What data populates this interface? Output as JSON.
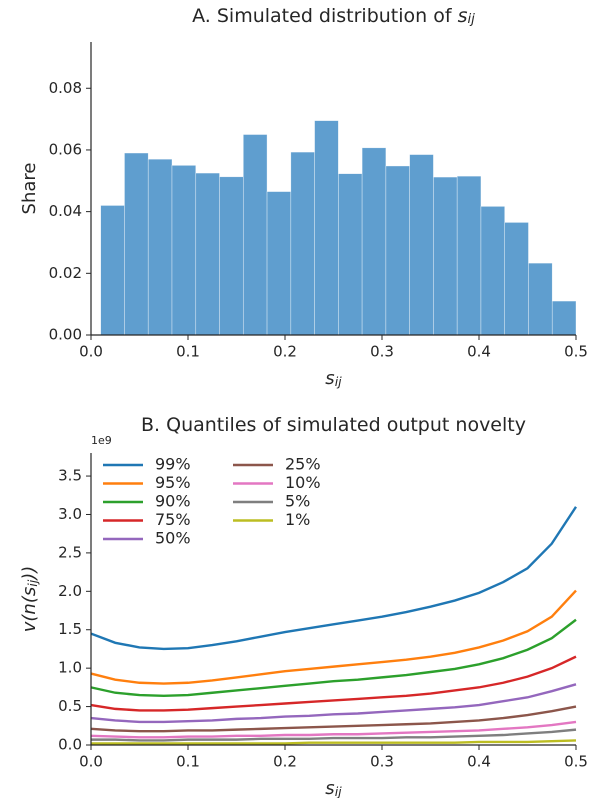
{
  "chart_data": [
    {
      "type": "histogram",
      "title": [
        {
          "text": "A. Simulated distribution of",
          "style": "normal"
        },
        {
          "text": "s",
          "style": "italic"
        },
        {
          "text": "ij",
          "style": "sub"
        }
      ],
      "xlabel": [
        {
          "text": "s",
          "style": "italic"
        },
        {
          "text": "ij",
          "style": "sub"
        }
      ],
      "ylabel": [
        {
          "text": "Share",
          "style": "normal"
        }
      ],
      "bins": [
        0.01,
        0.0345,
        0.059,
        0.0835,
        0.108,
        0.1325,
        0.157,
        0.1815,
        0.206,
        0.2305,
        0.255,
        0.2795,
        0.304,
        0.3285,
        0.353,
        0.3775,
        0.402,
        0.4265,
        0.451,
        0.4755,
        0.5
      ],
      "values": [
        0.042,
        0.059,
        0.057,
        0.055,
        0.0525,
        0.0513,
        0.065,
        0.0465,
        0.0593,
        0.0695,
        0.0523,
        0.0607,
        0.0548,
        0.0585,
        0.0512,
        0.0515,
        0.0417,
        0.0365,
        0.0233,
        0.011
      ],
      "color": "#5f9ecf",
      "xlim": [
        0,
        0.5
      ],
      "xticks": [
        {
          "value": 0,
          "label": "0.0"
        },
        {
          "value": 0.1,
          "label": "0.1"
        },
        {
          "value": 0.2,
          "label": "0.2"
        },
        {
          "value": 0.3,
          "label": "0.3"
        },
        {
          "value": 0.4,
          "label": "0.4"
        },
        {
          "value": 0.5,
          "label": "0.5"
        }
      ],
      "ylim": [
        0,
        0.095
      ],
      "yticks": [
        {
          "value": 0,
          "label": "0.00"
        },
        {
          "value": 0.02,
          "label": "0.02"
        },
        {
          "value": 0.04,
          "label": "0.04"
        },
        {
          "value": 0.06,
          "label": "0.06"
        },
        {
          "value": 0.08,
          "label": "0.08"
        }
      ]
    },
    {
      "type": "line",
      "title": [
        {
          "text": "B. Quantiles of simulated output novelty",
          "style": "normal"
        }
      ],
      "xlabel": [
        {
          "text": "s",
          "style": "italic"
        },
        {
          "text": "ij",
          "style": "sub"
        }
      ],
      "ylabel": [
        {
          "text": "v(n(",
          "style": "italic"
        },
        {
          "text": "s",
          "style": "italic"
        },
        {
          "text": "ij",
          "style": "sub"
        },
        {
          "text": "))",
          "style": "italic"
        }
      ],
      "y_offset_label": "1e9",
      "legend": "upper left",
      "legend_rows": 5,
      "x": [
        0,
        0.025,
        0.05,
        0.075,
        0.1,
        0.125,
        0.15,
        0.175,
        0.2,
        0.225,
        0.25,
        0.275,
        0.3,
        0.325,
        0.35,
        0.375,
        0.4,
        0.425,
        0.45,
        0.475,
        0.5
      ],
      "series": [
        {
          "name": "99%",
          "color": "#1f77b4",
          "values": [
            1.45,
            1.33,
            1.27,
            1.25,
            1.26,
            1.3,
            1.35,
            1.41,
            1.47,
            1.52,
            1.57,
            1.62,
            1.67,
            1.73,
            1.8,
            1.88,
            1.98,
            2.12,
            2.3,
            2.62,
            3.1
          ]
        },
        {
          "name": "95%",
          "color": "#ff7f0e",
          "values": [
            0.93,
            0.85,
            0.81,
            0.8,
            0.81,
            0.84,
            0.88,
            0.92,
            0.96,
            0.99,
            1.02,
            1.05,
            1.08,
            1.11,
            1.15,
            1.2,
            1.27,
            1.36,
            1.48,
            1.67,
            2.01
          ]
        },
        {
          "name": "90%",
          "color": "#2ca02c",
          "values": [
            0.75,
            0.68,
            0.65,
            0.64,
            0.65,
            0.68,
            0.71,
            0.74,
            0.77,
            0.8,
            0.83,
            0.85,
            0.88,
            0.91,
            0.95,
            0.99,
            1.05,
            1.13,
            1.24,
            1.39,
            1.63
          ]
        },
        {
          "name": "75%",
          "color": "#d62728",
          "values": [
            0.52,
            0.47,
            0.45,
            0.45,
            0.46,
            0.48,
            0.5,
            0.52,
            0.54,
            0.56,
            0.58,
            0.6,
            0.62,
            0.64,
            0.67,
            0.71,
            0.75,
            0.81,
            0.89,
            1.0,
            1.15
          ]
        },
        {
          "name": "50%",
          "color": "#9467bd",
          "values": [
            0.35,
            0.32,
            0.3,
            0.3,
            0.31,
            0.32,
            0.34,
            0.35,
            0.37,
            0.38,
            0.4,
            0.41,
            0.43,
            0.45,
            0.47,
            0.49,
            0.52,
            0.57,
            0.62,
            0.7,
            0.79
          ]
        },
        {
          "name": "25%",
          "color": "#8c564b",
          "values": [
            0.21,
            0.19,
            0.18,
            0.18,
            0.19,
            0.19,
            0.2,
            0.21,
            0.22,
            0.23,
            0.24,
            0.25,
            0.26,
            0.27,
            0.28,
            0.3,
            0.32,
            0.35,
            0.39,
            0.44,
            0.5
          ]
        },
        {
          "name": "10%",
          "color": "#e377c2",
          "values": [
            0.12,
            0.11,
            0.1,
            0.1,
            0.11,
            0.11,
            0.12,
            0.12,
            0.13,
            0.13,
            0.14,
            0.14,
            0.15,
            0.16,
            0.17,
            0.18,
            0.19,
            0.21,
            0.23,
            0.26,
            0.3
          ]
        },
        {
          "name": "5%",
          "color": "#7f7f7f",
          "values": [
            0.07,
            0.07,
            0.06,
            0.06,
            0.07,
            0.07,
            0.07,
            0.08,
            0.08,
            0.08,
            0.09,
            0.09,
            0.09,
            0.1,
            0.1,
            0.11,
            0.12,
            0.13,
            0.15,
            0.17,
            0.2
          ]
        },
        {
          "name": "1%",
          "color": "#bcbd22",
          "values": [
            0.02,
            0.02,
            0.02,
            0.02,
            0.02,
            0.02,
            0.02,
            0.02,
            0.02,
            0.03,
            0.03,
            0.03,
            0.03,
            0.03,
            0.03,
            0.03,
            0.04,
            0.04,
            0.04,
            0.05,
            0.06
          ]
        }
      ],
      "xlim": [
        0,
        0.5
      ],
      "xticks": [
        {
          "value": 0,
          "label": "0.0"
        },
        {
          "value": 0.1,
          "label": "0.1"
        },
        {
          "value": 0.2,
          "label": "0.2"
        },
        {
          "value": 0.3,
          "label": "0.3"
        },
        {
          "value": 0.4,
          "label": "0.4"
        },
        {
          "value": 0.5,
          "label": "0.5"
        }
      ],
      "ylim": [
        0,
        3.8
      ],
      "yticks": [
        {
          "value": 0,
          "label": "0.0"
        },
        {
          "value": 0.5,
          "label": "0.5"
        },
        {
          "value": 1,
          "label": "1.0"
        },
        {
          "value": 1.5,
          "label": "1.5"
        },
        {
          "value": 2,
          "label": "2.0"
        },
        {
          "value": 2.5,
          "label": "2.5"
        },
        {
          "value": 3,
          "label": "3.0"
        },
        {
          "value": 3.5,
          "label": "3.5"
        }
      ]
    }
  ]
}
